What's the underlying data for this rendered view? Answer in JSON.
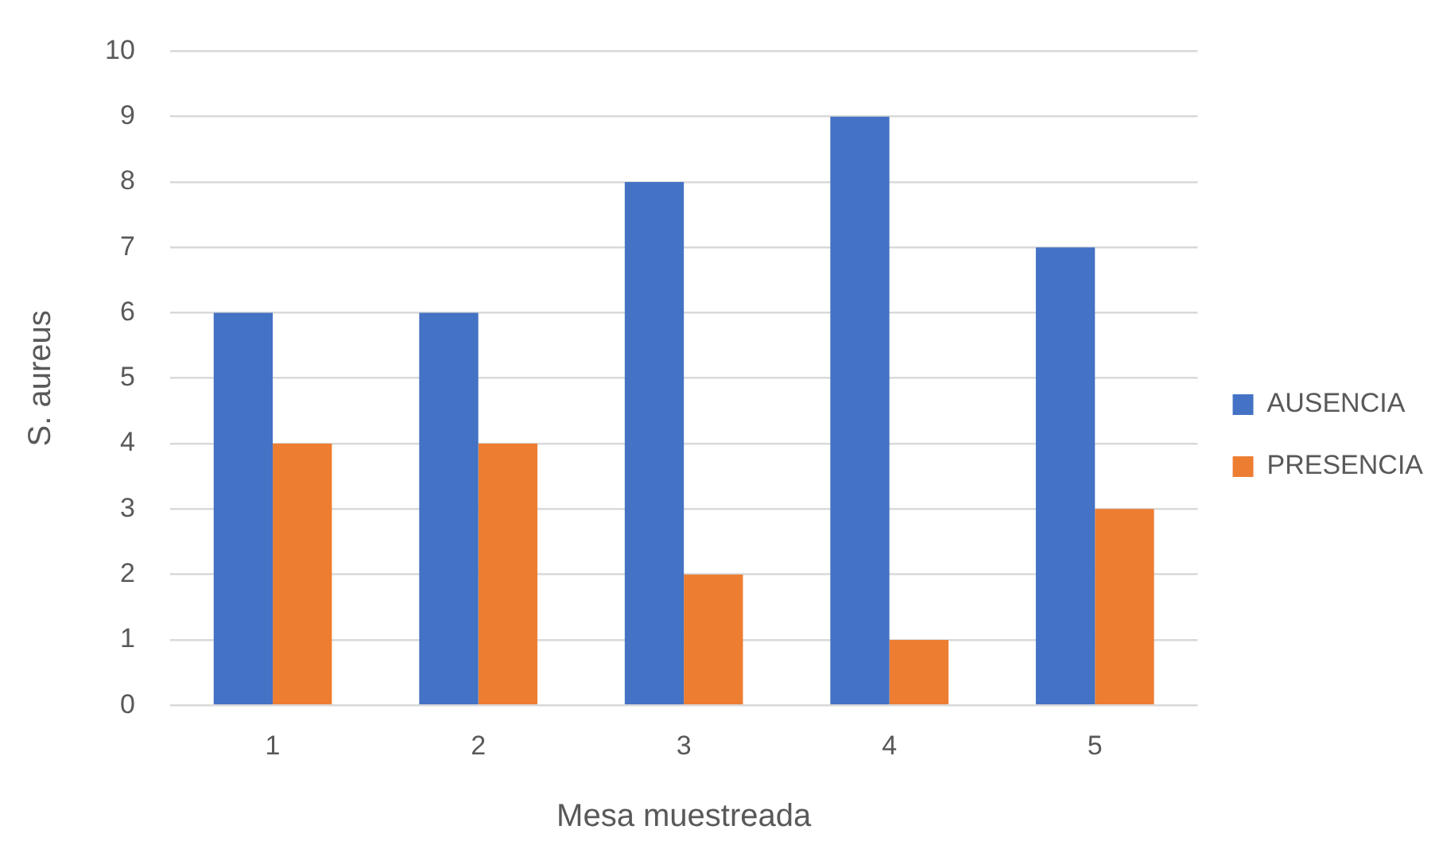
{
  "chart_data": {
    "type": "bar",
    "xlabel": "Mesa muestreada",
    "ylabel": "S. aureus",
    "categories": [
      "1",
      "2",
      "3",
      "4",
      "5"
    ],
    "series": [
      {
        "name": "AUSENCIA",
        "color": "#4472c4",
        "values": [
          6,
          6,
          8,
          9,
          7
        ]
      },
      {
        "name": "PRESENCIA",
        "color": "#ed7d31",
        "values": [
          4,
          4,
          2,
          1,
          3
        ]
      }
    ],
    "ylim": [
      0,
      10
    ],
    "yticks": [
      0,
      1,
      2,
      3,
      4,
      5,
      6,
      7,
      8,
      9,
      10
    ],
    "grid": "y",
    "legend": "right"
  }
}
